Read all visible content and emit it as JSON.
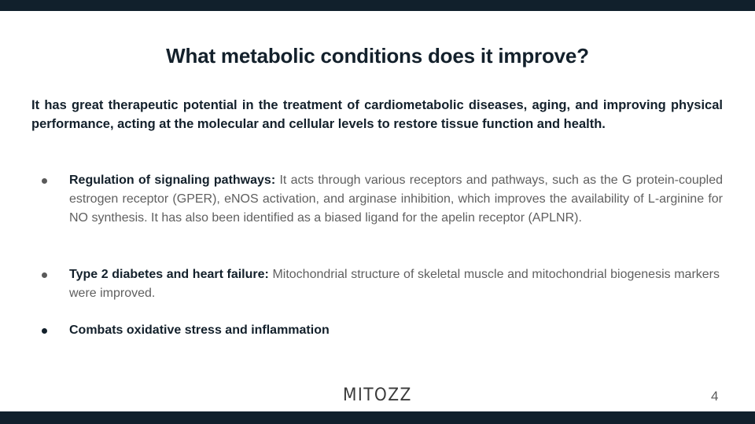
{
  "slide": {
    "title": "What metabolic conditions does it improve?",
    "intro": "It has great therapeutic potential in the treatment of cardiometabolic diseases, aging, and improving physical performance, acting at the molecular and cellular levels to restore tissue function and health.",
    "bullets": [
      {
        "lead": "Regulation of signaling pathways:",
        "text": " It acts through various receptors and pathways, such as the G protein-coupled estrogen receptor (GPER), eNOS activation, and arginase inhibition, which improves the availability of L-arginine for NO synthesis. It has also been identified as a biased ligand for the apelin receptor (APLNR)."
      },
      {
        "lead": "Type 2 diabetes and heart failure:",
        "text": " Mitochondrial structure of skeletal muscle and mitochondrial biogenesis markers were improved."
      },
      {
        "lead": "Combats oxidative stress and inflammation",
        "text": ""
      }
    ]
  },
  "footer": {
    "logo": "MITOZZ",
    "page_number": "4"
  },
  "colors": {
    "bar": "#11202c",
    "heading": "#13202b",
    "body_text": "#5f5f5f",
    "background": "#ffffff"
  }
}
